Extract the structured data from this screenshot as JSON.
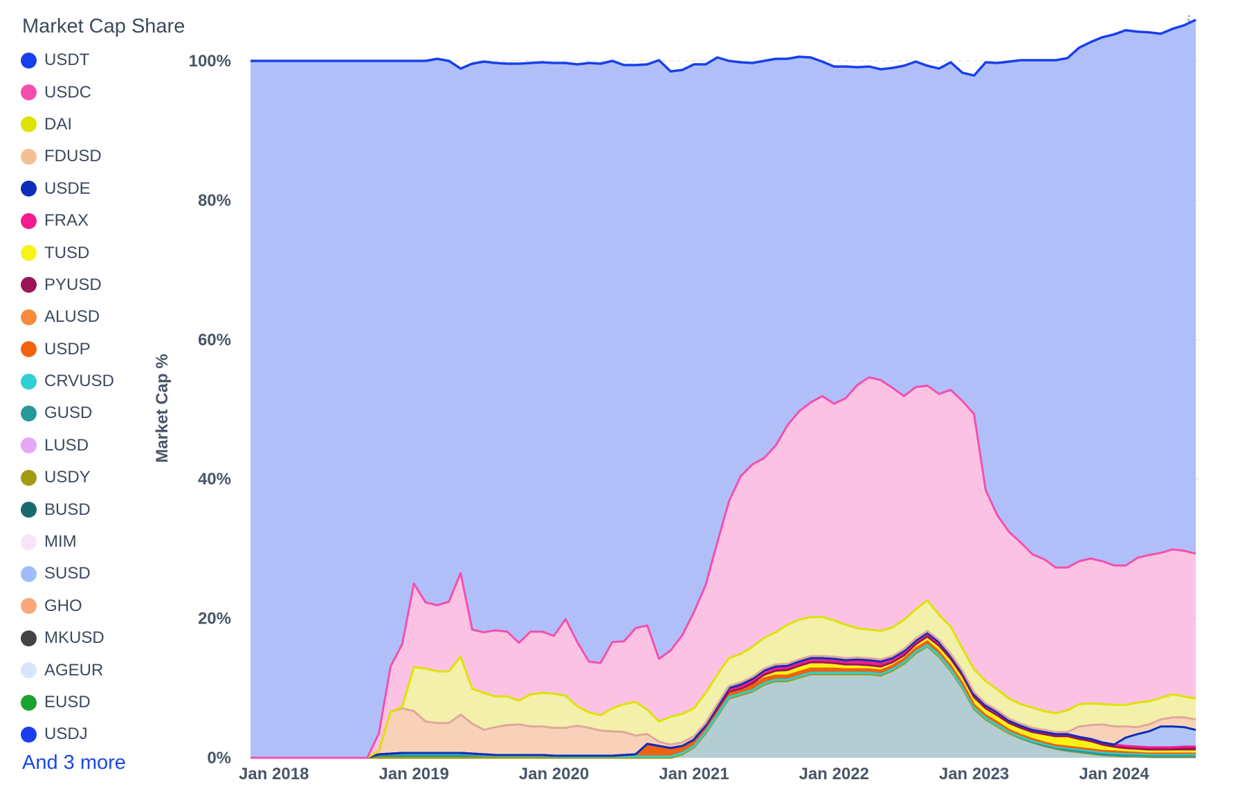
{
  "chart_title": "Market Cap Share",
  "info_icon": "i",
  "more_label": "And 3 more",
  "legend": [
    {
      "name": "USDT",
      "color": "#1740ea"
    },
    {
      "name": "USDC",
      "color": "#f44fae"
    },
    {
      "name": "DAI",
      "color": "#dde300"
    },
    {
      "name": "FDUSD",
      "color": "#f3c095"
    },
    {
      "name": "USDE",
      "color": "#0b2fba"
    },
    {
      "name": "FRAX",
      "color": "#f51b8e"
    },
    {
      "name": "TUSD",
      "color": "#f8f316"
    },
    {
      "name": "PYUSD",
      "color": "#9b1456"
    },
    {
      "name": "ALUSD",
      "color": "#f78a3c"
    },
    {
      "name": "USDP",
      "color": "#f0620c"
    },
    {
      "name": "CRVUSD",
      "color": "#2fcfd4"
    },
    {
      "name": "GUSD",
      "color": "#25999a"
    },
    {
      "name": "LUSD",
      "color": "#e6a6f2"
    },
    {
      "name": "USDY",
      "color": "#a19b12"
    },
    {
      "name": "BUSD",
      "color": "#176a6c"
    },
    {
      "name": "MIM",
      "color": "#f7e4f7"
    },
    {
      "name": "SUSD",
      "color": "#9fbef7"
    },
    {
      "name": "GHO",
      "color": "#f9a978"
    },
    {
      "name": "MKUSD",
      "color": "#444444"
    },
    {
      "name": "AGEUR",
      "color": "#d7e6fb"
    },
    {
      "name": "EUSD",
      "color": "#1ca32d"
    },
    {
      "name": "USDJ",
      "color": "#1c3cf0"
    }
  ],
  "chart_data": {
    "type": "area",
    "stacked": true,
    "title": "Market Cap Share",
    "xlabel": "",
    "ylabel": "Market Cap %",
    "ylim": [
      0,
      100
    ],
    "y_ticks": [
      "0%",
      "20%",
      "40%",
      "60%",
      "80%",
      "100%"
    ],
    "x_ticks": [
      "Jan 2018",
      "Jan 2019",
      "Jan 2020",
      "Jan 2021",
      "Jan 2022",
      "Jan 2023",
      "Jan 2024"
    ],
    "x_range": [
      "2017-11",
      "2024-08"
    ],
    "grid": true,
    "legend_position": "left",
    "x": [
      "2017-11",
      "2018-06",
      "2018-09",
      "2018-10",
      "2018-11",
      "2018-12",
      "2019-01",
      "2019-02",
      "2019-03",
      "2019-04",
      "2019-05",
      "2019-06",
      "2019-07",
      "2019-08",
      "2019-09",
      "2019-10",
      "2019-11",
      "2019-12",
      "2020-01",
      "2020-02",
      "2020-03",
      "2020-04",
      "2020-05",
      "2020-06",
      "2020-07",
      "2020-08",
      "2020-09",
      "2020-10",
      "2020-11",
      "2020-12",
      "2021-01",
      "2021-02",
      "2021-03",
      "2021-04",
      "2021-05",
      "2021-06",
      "2021-07",
      "2021-08",
      "2021-09",
      "2021-10",
      "2021-11",
      "2021-12",
      "2022-01",
      "2022-02",
      "2022-03",
      "2022-04",
      "2022-05",
      "2022-06",
      "2022-07",
      "2022-08",
      "2022-09",
      "2022-10",
      "2022-11",
      "2022-12",
      "2023-01",
      "2023-02",
      "2023-03",
      "2023-04",
      "2023-05",
      "2023-06",
      "2023-07",
      "2023-08",
      "2023-09",
      "2023-10",
      "2023-11",
      "2023-12",
      "2024-01",
      "2024-02",
      "2024-03",
      "2024-04",
      "2024-05",
      "2024-06",
      "2024-07",
      "2024-08"
    ],
    "series": [
      {
        "name": "BUSD",
        "color": "#b4cdd2",
        "stroke": "#5f8b8d",
        "values": [
          0,
          0,
          0,
          0,
          0,
          0,
          0,
          0,
          0,
          0,
          0,
          0,
          0,
          0,
          0,
          0,
          0,
          0,
          0,
          0,
          0,
          0,
          0,
          0,
          0,
          0,
          0,
          0,
          0,
          0.5,
          1.5,
          3.5,
          6,
          8.5,
          9,
          9.5,
          10.5,
          11,
          11,
          11.5,
          12,
          12,
          12,
          12,
          12,
          12,
          11.8,
          12.5,
          13.5,
          15,
          16,
          14.5,
          12.5,
          10,
          7,
          5.5,
          4.5,
          3.5,
          2.8,
          2.2,
          1.7,
          1.3,
          1,
          0.8,
          0.6,
          0.4,
          0.3,
          0.2,
          0.2,
          0.1,
          0.1,
          0.1,
          0.1,
          0.1
        ]
      },
      {
        "name": "USDY",
        "color": "#a19b12",
        "values": [
          0,
          0,
          0,
          0,
          0,
          0,
          0,
          0,
          0,
          0,
          0,
          0,
          0,
          0,
          0,
          0,
          0,
          0,
          0,
          0,
          0,
          0,
          0,
          0,
          0,
          0,
          0,
          0,
          0,
          0,
          0,
          0,
          0,
          0,
          0,
          0,
          0,
          0,
          0,
          0,
          0,
          0,
          0,
          0,
          0,
          0,
          0,
          0,
          0,
          0,
          0,
          0,
          0,
          0,
          0,
          0,
          0,
          0,
          0,
          0,
          0,
          0,
          0,
          0,
          0,
          0,
          0,
          0,
          0.1,
          0.1,
          0.1,
          0.1,
          0.1,
          0.1
        ]
      },
      {
        "name": "GUSD",
        "color": "#25999a",
        "values": [
          0,
          0,
          0,
          0.5,
          0.6,
          0.6,
          0.6,
          0.6,
          0.6,
          0.6,
          0.6,
          0.5,
          0.4,
          0.3,
          0.3,
          0.3,
          0.3,
          0.3,
          0.2,
          0.2,
          0.2,
          0.2,
          0.2,
          0.2,
          0.2,
          0.2,
          0.2,
          0.2,
          0.2,
          0.2,
          0.2,
          0.2,
          0.2,
          0.2,
          0.2,
          0.2,
          0.2,
          0.2,
          0.2,
          0.2,
          0.2,
          0.2,
          0.2,
          0.2,
          0.2,
          0.2,
          0.2,
          0.2,
          0.2,
          0.2,
          0.2,
          0.2,
          0.2,
          0.2,
          0.2,
          0.2,
          0.2,
          0.2,
          0.1,
          0.1,
          0.1,
          0.1,
          0.1,
          0.1,
          0.1,
          0.1,
          0.1,
          0.1,
          0.1,
          0.1,
          0.1,
          0.1,
          0.1,
          0.1
        ]
      },
      {
        "name": "CRVUSD",
        "color": "#2fcfd4",
        "values": [
          0,
          0,
          0,
          0,
          0,
          0,
          0,
          0,
          0,
          0,
          0,
          0,
          0,
          0,
          0,
          0,
          0,
          0,
          0,
          0,
          0,
          0,
          0,
          0,
          0,
          0,
          0,
          0,
          0,
          0,
          0,
          0,
          0,
          0,
          0,
          0,
          0,
          0,
          0,
          0,
          0,
          0,
          0,
          0,
          0,
          0,
          0,
          0,
          0,
          0,
          0,
          0,
          0,
          0,
          0,
          0,
          0,
          0,
          0.1,
          0.1,
          0.2,
          0.2,
          0.3,
          0.3,
          0.3,
          0.3,
          0.3,
          0.3,
          0.2,
          0.2,
          0.2,
          0.2,
          0.2,
          0.2
        ]
      },
      {
        "name": "USDP",
        "color": "#f0620c",
        "values": [
          0,
          0,
          0,
          0,
          0,
          0.1,
          0.1,
          0.1,
          0.1,
          0.1,
          0.1,
          0.1,
          0.1,
          0.1,
          0.1,
          0.1,
          0.1,
          0.1,
          0.1,
          0.1,
          0.1,
          0.1,
          0.1,
          0.1,
          0.2,
          0.3,
          1.8,
          1.5,
          1.2,
          1,
          0.9,
          0.8,
          0.8,
          0.8,
          0.7,
          0.7,
          0.7,
          0.6,
          0.6,
          0.6,
          0.6,
          0.6,
          0.6,
          0.5,
          0.5,
          0.5,
          0.5,
          0.5,
          0.5,
          0.5,
          0.5,
          0.5,
          0.5,
          0.5,
          0.4,
          0.4,
          0.4,
          0.3,
          0.3,
          0.3,
          0.2,
          0.2,
          0.2,
          0.2,
          0.2,
          0.2,
          0.2,
          0.2,
          0.2,
          0.2,
          0.2,
          0.2,
          0.2,
          0.2
        ]
      },
      {
        "name": "TUSD",
        "color": "#f8f316",
        "values": [
          0,
          0,
          0,
          0,
          0,
          0,
          0,
          0,
          0,
          0,
          0,
          0,
          0,
          0,
          0,
          0,
          0,
          0,
          0,
          0,
          0,
          0,
          0,
          0,
          0,
          0,
          0,
          0,
          0,
          0,
          0,
          0,
          0,
          0,
          0,
          0.3,
          0.5,
          0.7,
          0.8,
          0.9,
          0.9,
          0.9,
          0.8,
          0.7,
          0.7,
          0.6,
          0.6,
          0.5,
          0.5,
          0.6,
          0.7,
          0.9,
          1,
          1.1,
          1.1,
          1,
          1,
          1,
          1,
          1,
          1.2,
          1.3,
          1.4,
          1.2,
          1,
          0.6,
          0.4,
          0.3,
          0.2,
          0.2,
          0.2,
          0.2,
          0.2,
          0.2
        ]
      },
      {
        "name": "PYUSD",
        "color": "#9b1456",
        "values": [
          0,
          0,
          0,
          0,
          0,
          0,
          0,
          0,
          0,
          0,
          0,
          0,
          0,
          0,
          0,
          0,
          0,
          0,
          0,
          0,
          0,
          0,
          0,
          0,
          0,
          0,
          0,
          0,
          0,
          0,
          0,
          0,
          0,
          0,
          0,
          0,
          0,
          0,
          0,
          0,
          0,
          0,
          0,
          0,
          0,
          0,
          0,
          0,
          0,
          0,
          0,
          0,
          0,
          0,
          0,
          0,
          0,
          0,
          0,
          0,
          0,
          0,
          0.1,
          0.1,
          0.2,
          0.3,
          0.3,
          0.3,
          0.3,
          0.3,
          0.3,
          0.3,
          0.4,
          0.4
        ]
      },
      {
        "name": "FRAX",
        "color": "#f51b8e",
        "values": [
          0,
          0,
          0,
          0,
          0,
          0,
          0,
          0,
          0,
          0,
          0,
          0,
          0,
          0,
          0,
          0,
          0,
          0,
          0,
          0,
          0,
          0,
          0,
          0,
          0,
          0,
          0,
          0,
          0,
          0,
          0,
          0.2,
          0.4,
          0.5,
          0.6,
          0.6,
          0.6,
          0.6,
          0.6,
          0.6,
          0.6,
          0.6,
          0.6,
          0.6,
          0.7,
          0.7,
          0.7,
          0.6,
          0.6,
          0.5,
          0.5,
          0.5,
          0.4,
          0.4,
          0.4,
          0.4,
          0.4,
          0.3,
          0.3,
          0.3,
          0.3,
          0.3,
          0.3,
          0.3,
          0.3,
          0.3,
          0.3,
          0.3,
          0.3,
          0.3,
          0.3,
          0.3,
          0.3,
          0.3
        ]
      },
      {
        "name": "USDE",
        "color": "#b3c4f6",
        "stroke": "#0b2fba",
        "values": [
          0,
          0,
          0,
          0,
          0,
          0,
          0,
          0,
          0,
          0,
          0,
          0,
          0,
          0,
          0,
          0,
          0,
          0,
          0,
          0,
          0,
          0,
          0,
          0,
          0,
          0,
          0,
          0,
          0,
          0,
          0,
          0,
          0,
          0,
          0,
          0,
          0,
          0,
          0,
          0,
          0,
          0,
          0,
          0,
          0,
          0,
          0,
          0,
          0,
          0,
          0,
          0,
          0,
          0,
          0,
          0,
          0,
          0,
          0,
          0,
          0,
          0,
          0,
          0,
          0,
          0,
          0,
          1.2,
          1.8,
          2.3,
          3,
          3,
          2.8,
          2.4
        ]
      },
      {
        "name": "FDUSD",
        "color": "#f8d2b8",
        "stroke": "#e0a79b",
        "values": [
          0,
          0,
          0,
          0.5,
          6,
          6.4,
          6,
          4.5,
          4.3,
          4.3,
          5.5,
          4.3,
          3.5,
          4,
          4.3,
          4.4,
          4.1,
          4.1,
          4,
          4,
          4.3,
          4,
          3.6,
          3.5,
          3.3,
          2.7,
          1.4,
          0.6,
          0.5,
          0.5,
          0.5,
          0.3,
          0.3,
          0.3,
          0.3,
          0.3,
          0.3,
          0.3,
          0.3,
          0.3,
          0.3,
          0.3,
          0.3,
          0.3,
          0.3,
          0.3,
          0.3,
          0.3,
          0.3,
          0.3,
          0.3,
          0.3,
          0.3,
          0.3,
          0.3,
          0.3,
          0.3,
          0.3,
          0.3,
          0.3,
          0.3,
          0.3,
          0.3,
          1.5,
          2,
          2.6,
          2.6,
          1.6,
          1,
          1,
          1,
          1.3,
          1.4,
          1.5
        ]
      },
      {
        "name": "DAI",
        "color": "#f2f0aa",
        "stroke": "#dde300",
        "values": [
          0,
          0,
          0,
          0,
          0,
          0.2,
          6.3,
          7.6,
          7.4,
          7.4,
          8.3,
          5,
          5.3,
          4.4,
          4.1,
          3.4,
          4.6,
          4.8,
          4.9,
          4.6,
          2.8,
          2.2,
          2.2,
          3.3,
          4,
          4.8,
          3.5,
          2.9,
          4,
          4.1,
          4,
          4.3,
          4.2,
          4,
          4.1,
          4.3,
          4.4,
          4.6,
          5.6,
          5.7,
          5.6,
          5.6,
          5.2,
          4.8,
          4.2,
          4.1,
          4.1,
          4.1,
          4.2,
          4.2,
          4.4,
          3.6,
          3.9,
          3.2,
          3.3,
          3.2,
          3,
          2.9,
          2.8,
          2.9,
          2.7,
          2.7,
          3.1,
          3.2,
          3.1,
          2.9,
          3.1,
          3.1,
          3.5,
          3.3,
          3.1,
          3.3,
          3,
          3
        ]
      },
      {
        "name": "USDC",
        "color": "#fcc2e4",
        "stroke": "#f44fae",
        "values": [
          0,
          0,
          0,
          2.5,
          6.5,
          9,
          12,
          9.5,
          9.5,
          10,
          12,
          8.5,
          8.7,
          9.5,
          9.3,
          8.3,
          9,
          8.8,
          8.3,
          11,
          9.2,
          7.3,
          7.5,
          9.5,
          9,
          10.6,
          12.1,
          9,
          9.5,
          11.3,
          13.8,
          15.5,
          19,
          22.5,
          25.5,
          26.2,
          25.8,
          26.8,
          28.6,
          29.9,
          30.8,
          31.7,
          31.1,
          32.5,
          34.9,
          36.2,
          36,
          34.4,
          32.1,
          31.9,
          30.8,
          31.7,
          34,
          35.5,
          36.6,
          27.4,
          25,
          23.9,
          23.2,
          22,
          21.8,
          20.9,
          20.5,
          20.5,
          20.8,
          20.5,
          20,
          20,
          20.8,
          21,
          20.8,
          20.8,
          20.9,
          20.8
        ]
      },
      {
        "name": "USDT",
        "color": "#b1bff9",
        "stroke": "#1740ea",
        "values": [
          100,
          100,
          100,
          96.5,
          86.9,
          83.7,
          75,
          77.7,
          78.4,
          77.6,
          72.4,
          81.2,
          81.9,
          81.4,
          81.5,
          83.1,
          81.6,
          81.7,
          82.2,
          79.8,
          82.9,
          85.9,
          86,
          83.4,
          82.7,
          80.8,
          80.5,
          85.9,
          83.1,
          81.1,
          78.6,
          74.7,
          69.6,
          63.2,
          59.4,
          57.6,
          57,
          55.5,
          52.6,
          50.9,
          49.5,
          48,
          48.4,
          47.6,
          45.6,
          44.6,
          44.6,
          45.9,
          47.4,
          46.7,
          45.9,
          46.7,
          47,
          47.1,
          48.6,
          61.4,
          64.9,
          67.5,
          69.2,
          70.9,
          71.6,
          72.8,
          73.1,
          73.7,
          74.1,
          75.2,
          76.2,
          76.8,
          75.5,
          75,
          74.5,
          74.7,
          75.4,
          76.6
        ]
      }
    ]
  }
}
